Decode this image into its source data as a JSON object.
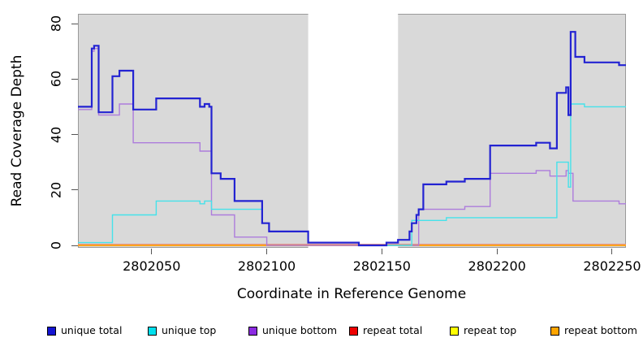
{
  "axes": {
    "x": {
      "label": "Coordinate in Reference Genome",
      "ticks": [
        2802050,
        2802100,
        2802150,
        2802200,
        2802250
      ],
      "range": [
        2802018,
        2802256
      ]
    },
    "y": {
      "label": "Read Coverage Depth",
      "ticks": [
        0,
        20,
        40,
        60,
        80
      ],
      "range": [
        0,
        80
      ]
    }
  },
  "legend": {
    "items": [
      {
        "label": "unique total",
        "swatch": "#1414d2"
      },
      {
        "label": "unique top",
        "swatch": "#00e0ee"
      },
      {
        "label": "unique bottom",
        "swatch": "#8c2be2"
      },
      {
        "label": "repeat total",
        "swatch": "#ee0000"
      },
      {
        "label": "repeat top",
        "swatch": "#ffff00"
      },
      {
        "label": "repeat bottom",
        "swatch": "#ffa500"
      }
    ]
  },
  "chart_data": {
    "type": "line",
    "step": true,
    "title": "",
    "xlabel": "Coordinate in Reference Genome",
    "ylabel": "Read Coverage Depth",
    "xlim": [
      2802018,
      2802256
    ],
    "ylim": [
      0,
      80
    ],
    "grid": false,
    "legend_position": "bottom",
    "plot_background": "#d9d9d9",
    "border_color": "#9a9a9a",
    "highlight_band": {
      "from": 2802118,
      "to": 2802157,
      "color": "#ffffff"
    },
    "series": [
      {
        "name": "unique total",
        "color": "#2323d2",
        "width": 2.2,
        "points": [
          [
            2802018,
            50
          ],
          [
            2802024,
            71
          ],
          [
            2802025,
            72
          ],
          [
            2802027,
            48
          ],
          [
            2802033,
            61
          ],
          [
            2802036,
            63
          ],
          [
            2802042,
            49
          ],
          [
            2802052,
            53
          ],
          [
            2802071,
            50
          ],
          [
            2802073,
            51
          ],
          [
            2802075,
            50
          ],
          [
            2802076,
            26
          ],
          [
            2802080,
            24
          ],
          [
            2802086,
            16
          ],
          [
            2802098,
            8
          ],
          [
            2802101,
            5
          ],
          [
            2802118,
            1
          ],
          [
            2802140,
            0
          ],
          [
            2802152,
            1
          ],
          [
            2802157,
            2
          ],
          [
            2802162,
            5
          ],
          [
            2802163,
            8
          ],
          [
            2802165,
            11
          ],
          [
            2802166,
            13
          ],
          [
            2802168,
            22
          ],
          [
            2802178,
            23
          ],
          [
            2802186,
            24
          ],
          [
            2802197,
            36
          ],
          [
            2802217,
            37
          ],
          [
            2802223,
            35
          ],
          [
            2802226,
            55
          ],
          [
            2802230,
            57
          ],
          [
            2802231,
            47
          ],
          [
            2802232,
            77
          ],
          [
            2802234,
            68
          ],
          [
            2802238,
            66
          ],
          [
            2802253,
            65
          ],
          [
            2802256,
            65
          ]
        ]
      },
      {
        "name": "unique top",
        "color": "#45e2ea",
        "width": 1.4,
        "points": [
          [
            2802018,
            1
          ],
          [
            2802033,
            11
          ],
          [
            2802052,
            16
          ],
          [
            2802071,
            15
          ],
          [
            2802073,
            16
          ],
          [
            2802076,
            13
          ],
          [
            2802098,
            8
          ],
          [
            2802101,
            5
          ],
          [
            2802118,
            1
          ],
          [
            2802140,
            0
          ],
          [
            2802163,
            9
          ],
          [
            2802178,
            10
          ],
          [
            2802226,
            30
          ],
          [
            2802231,
            21
          ],
          [
            2802232,
            51
          ],
          [
            2802238,
            50
          ],
          [
            2802256,
            50
          ]
        ]
      },
      {
        "name": "unique bottom",
        "color": "#ad7cdc",
        "width": 1.4,
        "points": [
          [
            2802018,
            49
          ],
          [
            2802024,
            70
          ],
          [
            2802025,
            71
          ],
          [
            2802027,
            47
          ],
          [
            2802036,
            51
          ],
          [
            2802042,
            37
          ],
          [
            2802071,
            34
          ],
          [
            2802076,
            11
          ],
          [
            2802086,
            3
          ],
          [
            2802100,
            0
          ],
          [
            2802166,
            13
          ],
          [
            2802186,
            14
          ],
          [
            2802197,
            26
          ],
          [
            2802217,
            27
          ],
          [
            2802223,
            25
          ],
          [
            2802230,
            27
          ],
          [
            2802231,
            26
          ],
          [
            2802233,
            16
          ],
          [
            2802253,
            15
          ],
          [
            2802256,
            15
          ]
        ]
      },
      {
        "name": "repeat total",
        "color": "#e08697",
        "width": 1.3,
        "points": [
          [
            2802018,
            0
          ],
          [
            2802256,
            0
          ]
        ]
      },
      {
        "name": "repeat top",
        "color": "#f5f532",
        "width": 1.3,
        "points": [
          [
            2802018,
            0
          ],
          [
            2802256,
            0
          ]
        ]
      },
      {
        "name": "repeat bottom",
        "color": "#ffa51e",
        "width": 2,
        "points": [
          [
            2802018,
            0
          ],
          [
            2802256,
            0
          ]
        ]
      }
    ]
  }
}
